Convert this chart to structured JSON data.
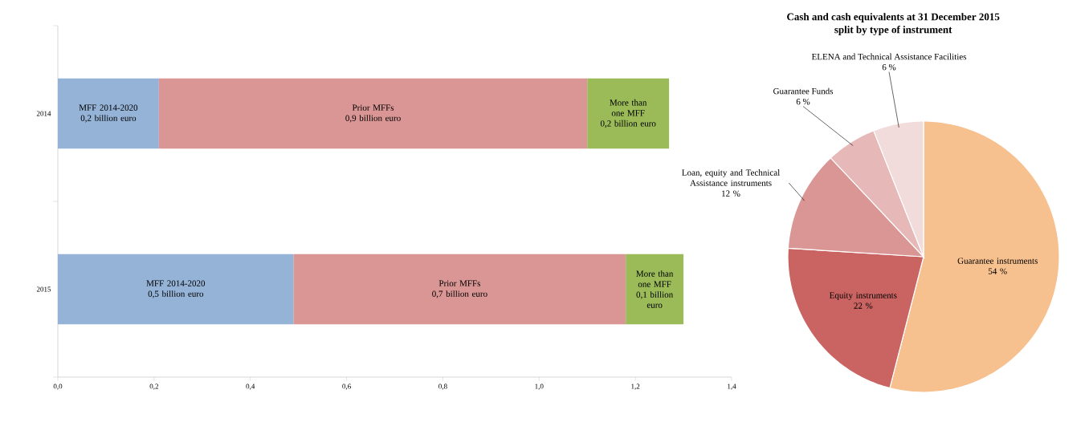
{
  "chart_data": [
    {
      "type": "bar",
      "orientation": "horizontal",
      "stacked": true,
      "categories": [
        "2014",
        "2015"
      ],
      "xlim": [
        0,
        1.4
      ],
      "xticks": [
        {
          "value": 0,
          "label": "0,0"
        },
        {
          "value": 0.2,
          "label": "0,2"
        },
        {
          "value": 0.4,
          "label": "0,4"
        },
        {
          "value": 0.6,
          "label": "0,6"
        },
        {
          "value": 0.8,
          "label": "0,8"
        },
        {
          "value": 1.0,
          "label": "1,0"
        },
        {
          "value": 1.2,
          "label": "1,2"
        },
        {
          "value": 1.4,
          "label": "1,4"
        }
      ],
      "series": [
        {
          "name": "MFF 2014-2020",
          "color": "#95b3d7",
          "values": [
            0.21,
            0.49
          ],
          "value_labels": [
            "0,2 billion euro",
            "0,5 billion euro"
          ]
        },
        {
          "name": "Prior MFFs",
          "color": "#d99694",
          "values": [
            0.89,
            0.69
          ],
          "value_labels": [
            "0,9 billion euro",
            "0,7 billion euro"
          ]
        },
        {
          "name": "More than one MFF",
          "color": "#9bbb59",
          "values": [
            0.17,
            0.12
          ],
          "value_labels": [
            "0,2 billion euro",
            "0,1 billion euro"
          ]
        }
      ]
    },
    {
      "type": "pie",
      "title": "Cash and cash equivalents at 31 December 2015 split by type of instrument",
      "categories": [
        "Guarantee instruments",
        "Equity instruments",
        "Loan, equity and Technical Assistance instruments",
        "Guarantee Funds",
        "ELENA and Technical Assistance Facilities"
      ],
      "values": [
        54,
        22,
        12,
        6,
        6
      ],
      "colors": [
        "#f7c08f",
        "#c96462",
        "#d99694",
        "#e6b9b8",
        "#f2dcdb"
      ],
      "value_labels": [
        "54 %",
        "22 %",
        "12 %",
        "6 %",
        "6 %"
      ]
    }
  ]
}
